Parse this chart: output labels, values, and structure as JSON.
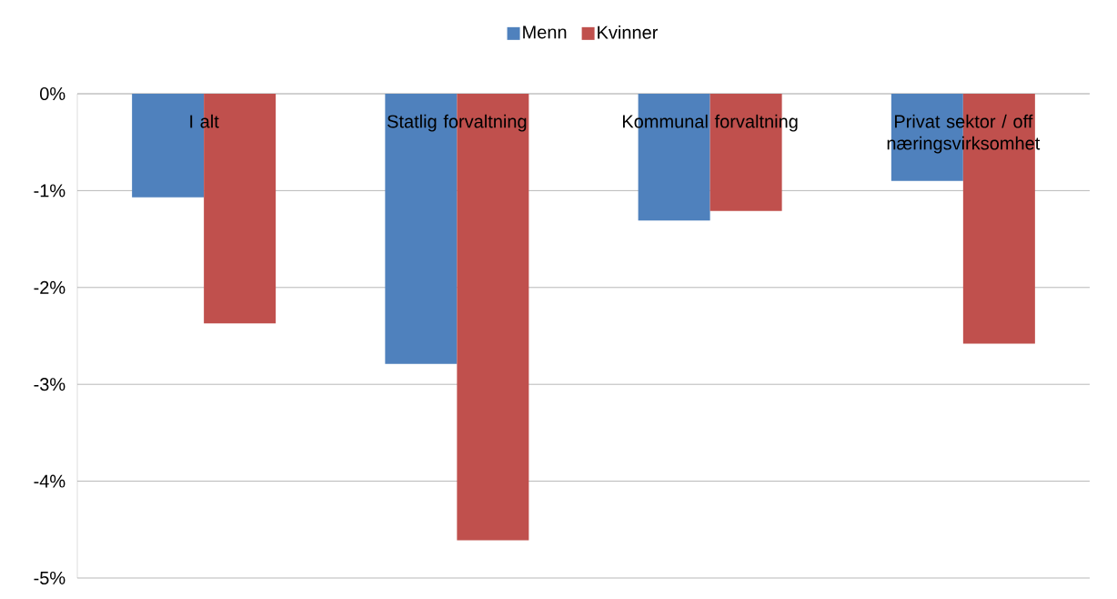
{
  "chart_data": {
    "type": "bar",
    "categories": [
      "I alt",
      "Statlig forvaltning",
      "Kommunal forvaltning",
      "Privat sektor / off næringsvirksomhet"
    ],
    "series": [
      {
        "name": "Menn",
        "color": "#4f81bd",
        "values": [
          -1.07,
          -2.79,
          -1.31,
          -0.9
        ]
      },
      {
        "name": "Kvinner",
        "color": "#c0504d",
        "values": [
          -2.37,
          -4.61,
          -1.21,
          -2.58
        ]
      }
    ],
    "ylim": [
      -5,
      0
    ],
    "yticks": [
      {
        "value": -5,
        "label": "-5%"
      },
      {
        "value": -4,
        "label": "-4%"
      },
      {
        "value": -3,
        "label": "-3%"
      },
      {
        "value": -2,
        "label": "-2%"
      },
      {
        "value": -1,
        "label": "-1%"
      },
      {
        "value": 0,
        "label": "0%"
      }
    ],
    "grid": "y",
    "legend": "top"
  }
}
